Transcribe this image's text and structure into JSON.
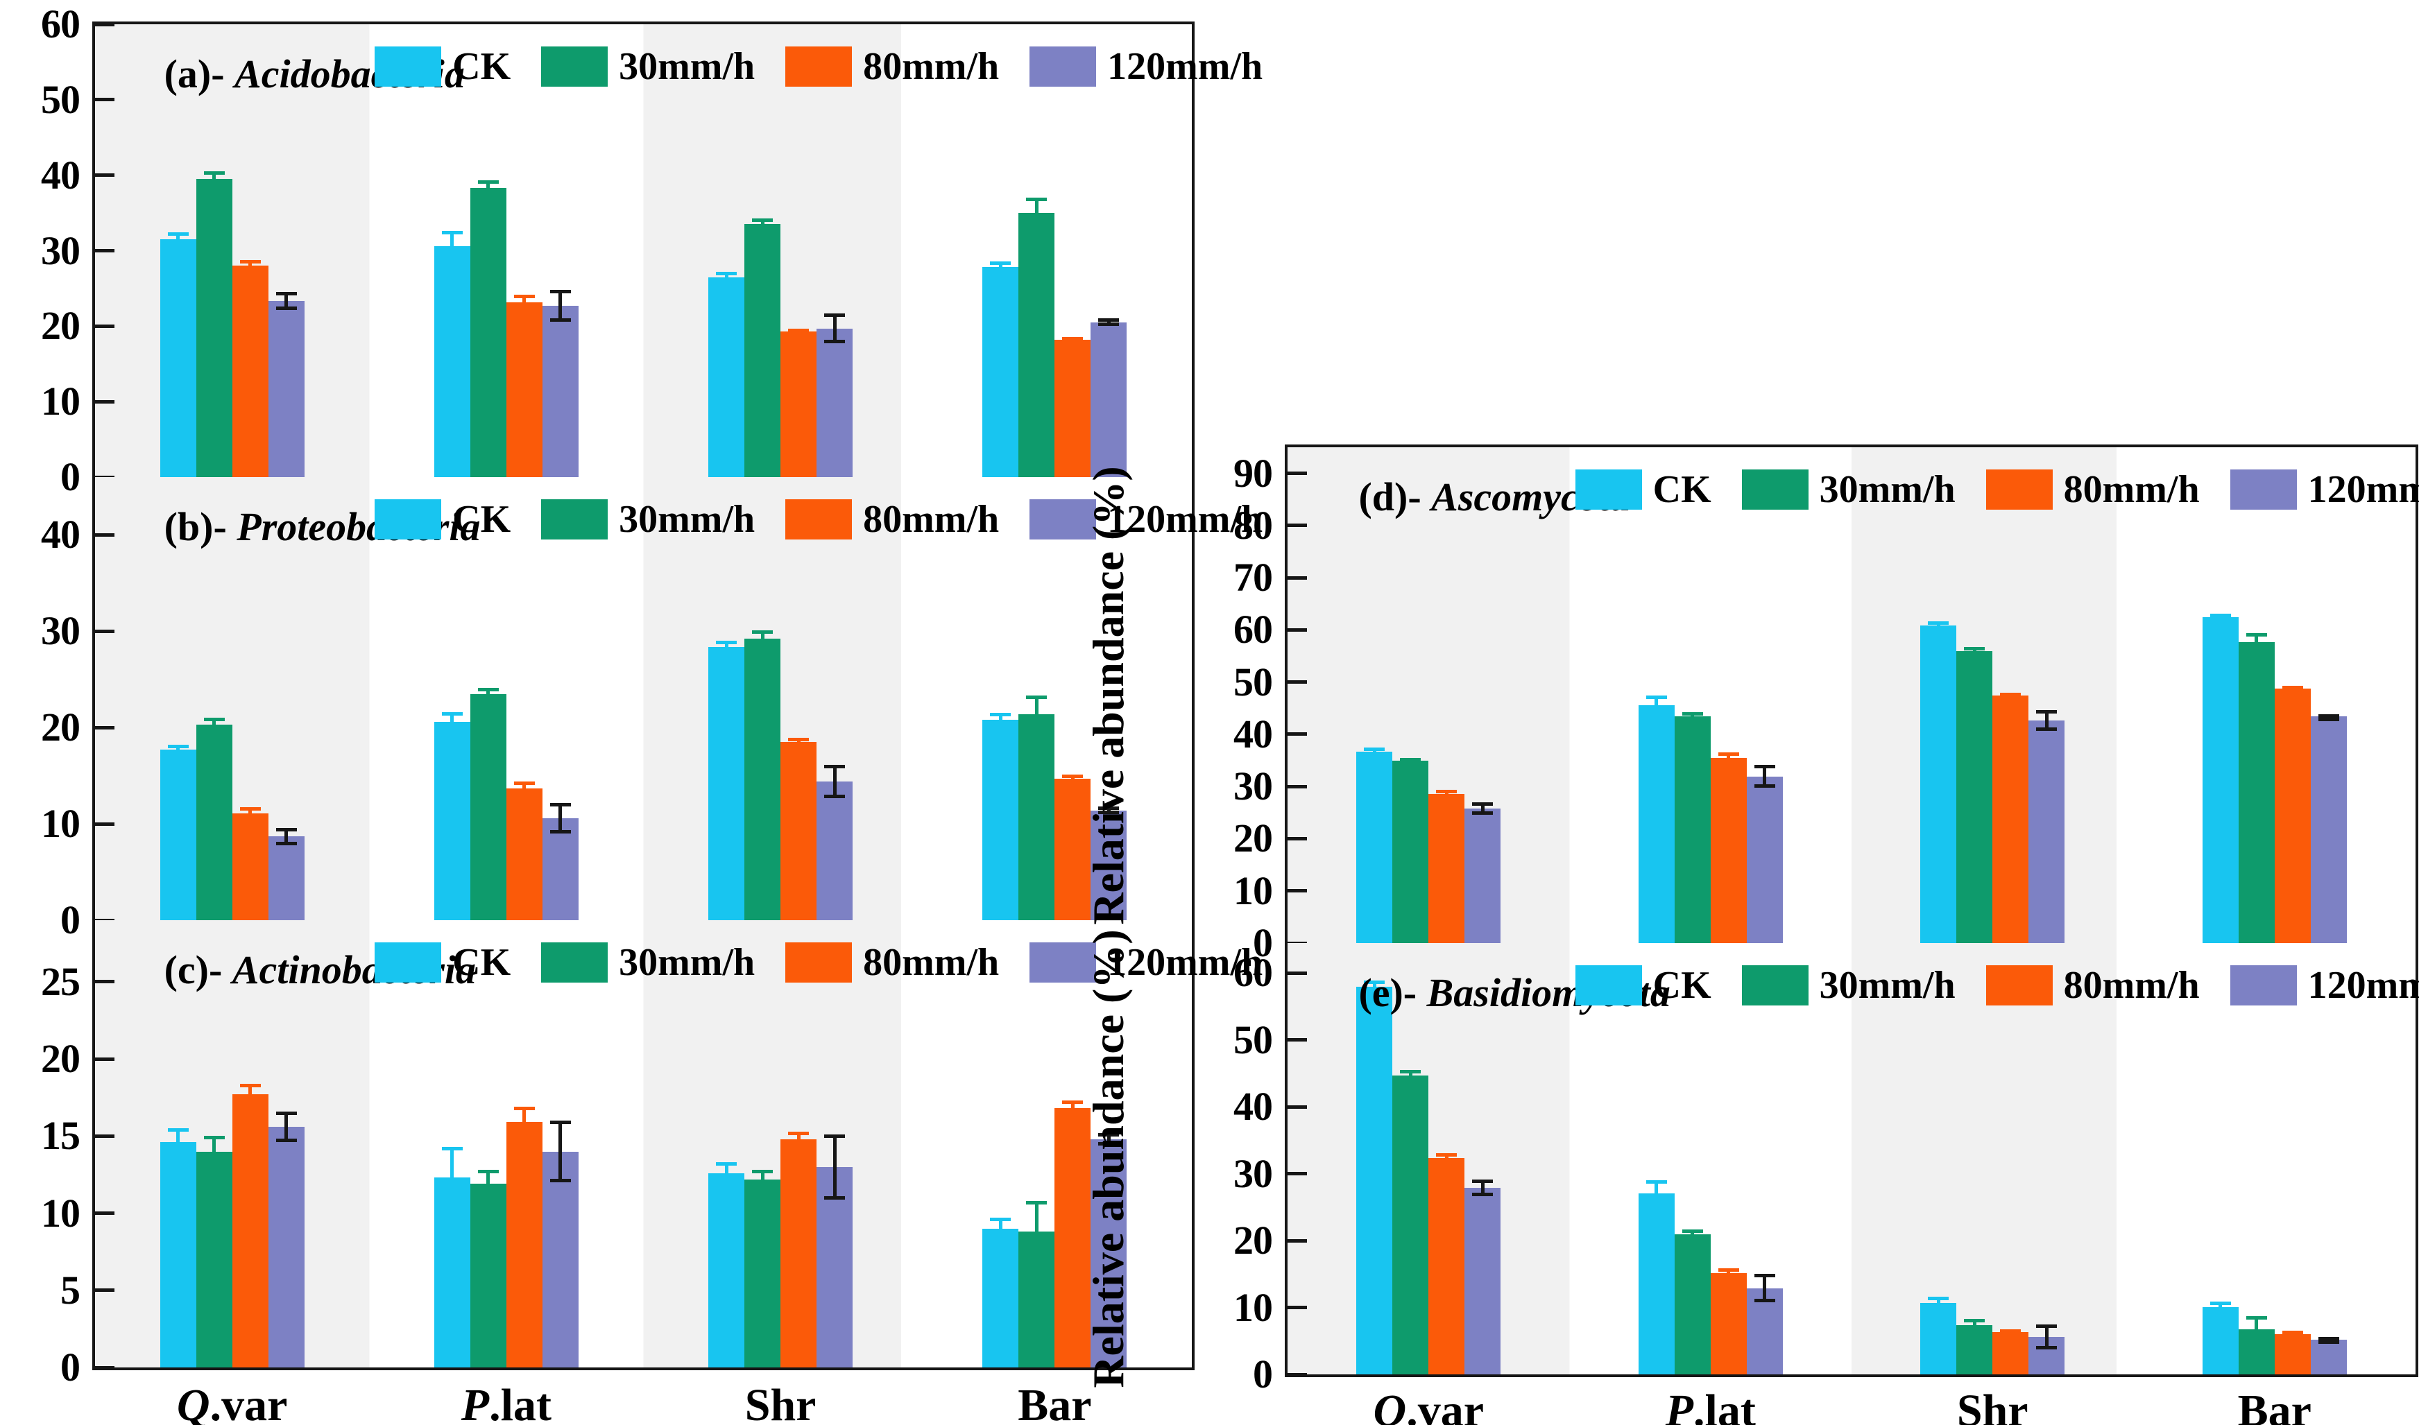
{
  "figure": {
    "y_axis_title": "Relative abundance (%)",
    "background_stripe_color": "#f1f1f1",
    "border_color": "#161616",
    "categories": [
      {
        "italic": "Q",
        "rest": ".var"
      },
      {
        "italic": "P",
        "rest": ".lat"
      },
      {
        "italic": "",
        "rest": "Shr"
      },
      {
        "italic": "",
        "rest": "Bar"
      }
    ],
    "legend": [
      {
        "label": "CK",
        "color": "#18c5f0"
      },
      {
        "label": "30mm/h",
        "color": "#0e9b6c"
      },
      {
        "label": "80mm/h",
        "color": "#fb5a09"
      },
      {
        "label": "120mm/h",
        "color": "#7d81c4"
      }
    ]
  },
  "chart_data": [
    {
      "type": "bar",
      "id": "a",
      "title_prefix": "(a)- ",
      "title_name": "Acidobacteria",
      "column": "left",
      "ylabel": "Relative abundance (%)",
      "ylim": [
        0,
        60
      ],
      "yticks": [
        0,
        10,
        20,
        30,
        40,
        50,
        60
      ],
      "categories": [
        "Q.var",
        "P.lat",
        "Shr",
        "Bar"
      ],
      "series": [
        {
          "name": "CK",
          "values": [
            31.5,
            30.6,
            26.5,
            27.8
          ],
          "errors": [
            0.9,
            2.0,
            0.7,
            0.8
          ],
          "color": "#18c5f0",
          "err_color": "#18c5f0"
        },
        {
          "name": "30mm/h",
          "values": [
            39.5,
            38.3,
            33.5,
            35.0
          ],
          "errors": [
            1.0,
            1.0,
            0.8,
            2.0
          ],
          "color": "#0e9b6c",
          "err_color": "#0e9b6c"
        },
        {
          "name": "80mm/h",
          "values": [
            28.0,
            23.2,
            19.3,
            18.2
          ],
          "errors": [
            0.8,
            1.0,
            0.4,
            0.4
          ],
          "color": "#fb5a09",
          "err_color": "#fb5a09"
        },
        {
          "name": "120mm/h",
          "values": [
            23.3,
            22.7,
            19.7,
            20.5
          ],
          "errors": [
            1.2,
            2.1,
            2.0,
            0.5
          ],
          "color": "#7d81c4",
          "err_color": "#161616"
        }
      ]
    },
    {
      "type": "bar",
      "id": "b",
      "title_prefix": "(b)- ",
      "title_name": "Proteobacteria",
      "column": "left",
      "ylabel": "Relative abundance (%)",
      "ylim": [
        0,
        46
      ],
      "yticks": [
        0,
        10,
        20,
        30,
        40
      ],
      "categories": [
        "Q.var",
        "P.lat",
        "Shr",
        "Bar"
      ],
      "series": [
        {
          "name": "CK",
          "values": [
            17.7,
            20.6,
            28.4,
            20.8
          ],
          "errors": [
            0.5,
            1.0,
            0.6,
            0.7
          ],
          "color": "#18c5f0",
          "err_color": "#18c5f0"
        },
        {
          "name": "30mm/h",
          "values": [
            20.3,
            23.5,
            29.2,
            21.4
          ],
          "errors": [
            0.7,
            0.6,
            0.9,
            1.9
          ],
          "color": "#0e9b6c",
          "err_color": "#0e9b6c"
        },
        {
          "name": "80mm/h",
          "values": [
            11.1,
            13.7,
            18.5,
            14.7
          ],
          "errors": [
            0.6,
            0.7,
            0.4,
            0.4
          ],
          "color": "#fb5a09",
          "err_color": "#fb5a09"
        },
        {
          "name": "120mm/h",
          "values": [
            8.7,
            10.6,
            14.4,
            11.4
          ],
          "errors": [
            0.9,
            1.6,
            1.7,
            0.4
          ],
          "color": "#7d81c4",
          "err_color": "#161616"
        }
      ]
    },
    {
      "type": "bar",
      "id": "c",
      "title_prefix": "(c)- ",
      "title_name": "Actinobacteria",
      "column": "left",
      "ylabel": "Relative abundance (%)",
      "ylim": [
        0,
        29
      ],
      "yticks": [
        0,
        5,
        10,
        15,
        20,
        25
      ],
      "categories": [
        "Q.var",
        "P.lat",
        "Shr",
        "Bar"
      ],
      "series": [
        {
          "name": "CK",
          "values": [
            14.6,
            12.3,
            12.6,
            9.0
          ],
          "errors": [
            0.9,
            2.0,
            0.7,
            0.7
          ],
          "color": "#18c5f0",
          "err_color": "#18c5f0"
        },
        {
          "name": "30mm/h",
          "values": [
            14.0,
            11.9,
            12.2,
            8.8
          ],
          "errors": [
            1.0,
            0.9,
            0.6,
            2.0
          ],
          "color": "#0e9b6c",
          "err_color": "#0e9b6c"
        },
        {
          "name": "80mm/h",
          "values": [
            17.7,
            15.9,
            14.8,
            16.8
          ],
          "errors": [
            0.7,
            1.0,
            0.5,
            0.5
          ],
          "color": "#fb5a09",
          "err_color": "#fb5a09"
        },
        {
          "name": "120mm/h",
          "values": [
            15.6,
            14.0,
            13.0,
            14.8
          ],
          "errors": [
            1.0,
            2.0,
            2.1,
            0.4
          ],
          "color": "#7d81c4",
          "err_color": "#161616"
        }
      ]
    },
    {
      "type": "bar",
      "id": "d",
      "title_prefix": "(d)- ",
      "title_name": "Ascomycota",
      "column": "right",
      "ylabel": "Relative abundance (%)",
      "ylim": [
        0,
        95
      ],
      "yticks": [
        0,
        10,
        20,
        30,
        40,
        50,
        60,
        70,
        80,
        90
      ],
      "categories": [
        "Q.var",
        "P.lat",
        "Shr",
        "Bar"
      ],
      "series": [
        {
          "name": "CK",
          "values": [
            36.7,
            45.6,
            60.9,
            62.4
          ],
          "errors": [
            0.8,
            1.8,
            0.7,
            0.7
          ],
          "color": "#18c5f0",
          "err_color": "#18c5f0"
        },
        {
          "name": "30mm/h",
          "values": [
            34.9,
            43.4,
            56.0,
            57.7
          ],
          "errors": [
            0.6,
            0.8,
            0.8,
            1.7
          ],
          "color": "#0e9b6c",
          "err_color": "#0e9b6c"
        },
        {
          "name": "80mm/h",
          "values": [
            28.6,
            35.5,
            47.4,
            48.8
          ],
          "errors": [
            0.7,
            1.0,
            0.5,
            0.5
          ],
          "color": "#fb5a09",
          "err_color": "#fb5a09"
        },
        {
          "name": "120mm/h",
          "values": [
            25.8,
            31.9,
            42.6,
            43.5
          ],
          "errors": [
            1.2,
            2.2,
            2.0,
            0.4
          ],
          "color": "#7d81c4",
          "err_color": "#161616"
        }
      ]
    },
    {
      "type": "bar",
      "id": "e",
      "title_prefix": "(e)- ",
      "title_name": "Basidiomycota",
      "column": "right",
      "ylabel": "Relative abundance (%)",
      "ylim": [
        0,
        64.5
      ],
      "yticks": [
        0,
        10,
        20,
        30,
        40,
        50,
        60
      ],
      "categories": [
        "Q.var",
        "P.lat",
        "Shr",
        "Bar"
      ],
      "series": [
        {
          "name": "CK",
          "values": [
            58.0,
            27.1,
            10.7,
            10.1
          ],
          "errors": [
            0.9,
            1.9,
            0.9,
            0.8
          ],
          "color": "#18c5f0",
          "err_color": "#18c5f0"
        },
        {
          "name": "30mm/h",
          "values": [
            44.7,
            20.9,
            7.4,
            6.7
          ],
          "errors": [
            0.8,
            0.8,
            0.9,
            2.0
          ],
          "color": "#0e9b6c",
          "err_color": "#0e9b6c"
        },
        {
          "name": "80mm/h",
          "values": [
            32.4,
            15.1,
            6.3,
            6.0
          ],
          "errors": [
            0.7,
            0.8,
            0.4,
            0.5
          ],
          "color": "#fb5a09",
          "err_color": "#fb5a09"
        },
        {
          "name": "120mm/h",
          "values": [
            27.9,
            12.9,
            5.6,
            5.2
          ],
          "errors": [
            1.2,
            2.1,
            1.9,
            0.4
          ],
          "color": "#7d81c4",
          "err_color": "#161616"
        }
      ]
    }
  ]
}
